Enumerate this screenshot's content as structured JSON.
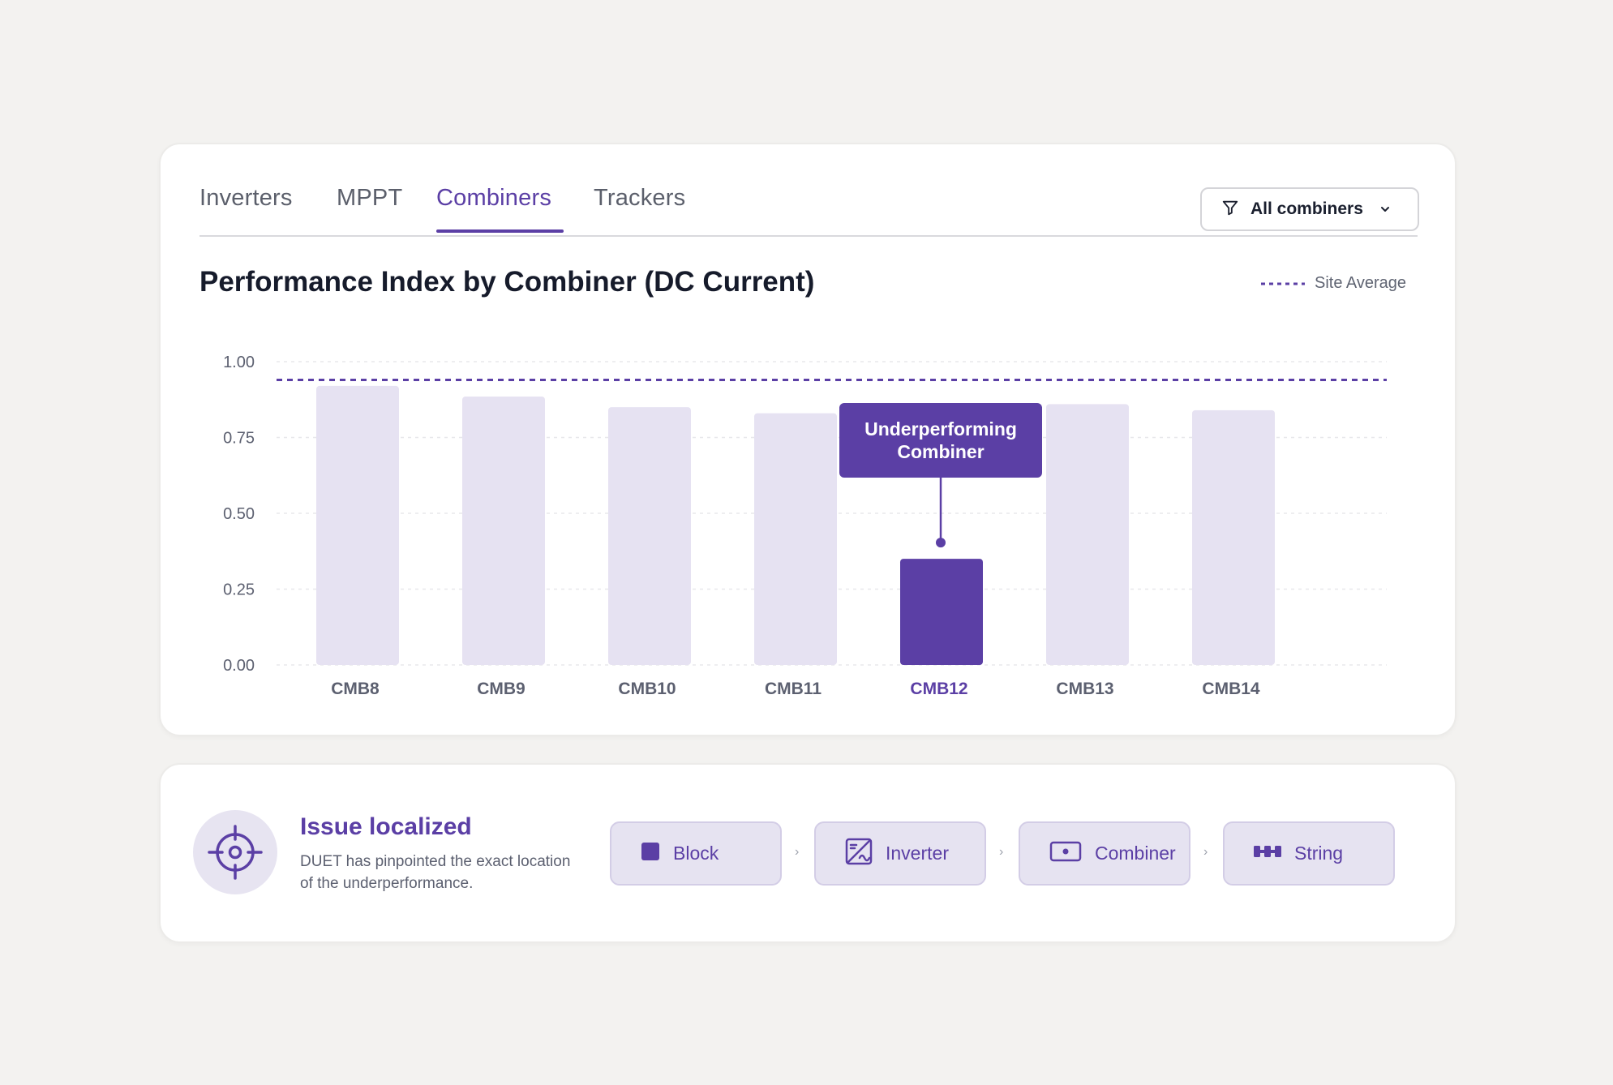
{
  "tabs": [
    {
      "label": "Inverters"
    },
    {
      "label": "MPPT"
    },
    {
      "label": "Combiners"
    },
    {
      "label": "Trackers"
    }
  ],
  "active_tab": "Combiners",
  "filter": {
    "label": "All combiners",
    "icon": "filter-icon"
  },
  "legend": {
    "label": "Site Average",
    "style": "dashed",
    "color": "#5b3fa5"
  },
  "colors": {
    "accent": "#5b3fa5",
    "bar_muted": "#e6e2f2",
    "grid": "#e8e8eb"
  },
  "chart_data": {
    "type": "bar",
    "title": "Performance Index by Combiner (DC Current)",
    "categories": [
      "CMB8",
      "CMB9",
      "CMB10",
      "CMB11",
      "CMB12",
      "CMB13",
      "CMB14"
    ],
    "values": [
      0.92,
      0.885,
      0.85,
      0.83,
      0.35,
      0.86,
      0.84
    ],
    "highlight_category": "CMB12",
    "site_average": 0.94,
    "ylim": [
      0,
      1.0
    ],
    "yticks": [
      "0.00",
      "0.25",
      "0.50",
      "0.75",
      "1.00"
    ],
    "grid": true,
    "legend_position": "top-right",
    "annotation": {
      "category": "CMB12",
      "text": "Underperforming Combiner"
    }
  },
  "issue": {
    "title": "Issue localized",
    "description": "DUET has pinpointed the exact location of the underperformance.",
    "icon": "crosshair-icon",
    "steps": [
      {
        "label": "Block",
        "icon": "block-icon"
      },
      {
        "label": "Inverter",
        "icon": "inverter-icon"
      },
      {
        "label": "Combiner",
        "icon": "combiner-icon"
      },
      {
        "label": "String",
        "icon": "string-icon"
      }
    ],
    "separator": "›"
  }
}
